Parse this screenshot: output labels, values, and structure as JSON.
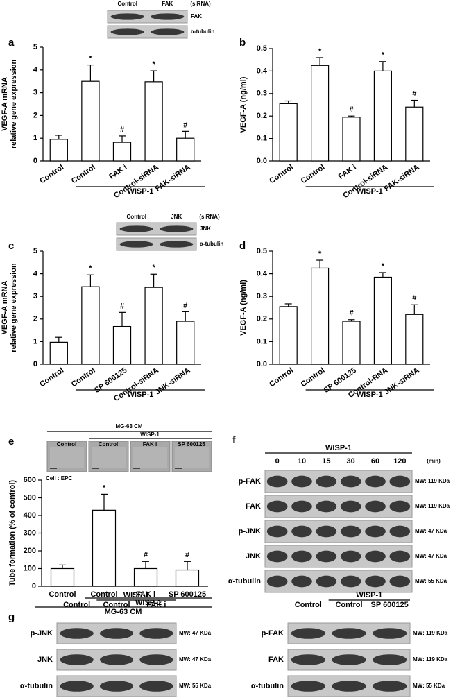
{
  "chart_data": [
    {
      "type": "bar",
      "panel": "a",
      "ylabel": [
        "VEGF-A mRNA",
        "relative gene expression"
      ],
      "categories": [
        "Control",
        "Control",
        "FAK i",
        "Control-siRNA",
        "FAK-siRNA"
      ],
      "values": [
        0.95,
        3.5,
        0.82,
        3.48,
        1.0
      ],
      "errors": [
        0.18,
        0.72,
        0.28,
        0.48,
        0.3
      ],
      "markers": [
        null,
        "*",
        "#",
        "*",
        "#"
      ],
      "groups": [
        "WISP-1"
      ],
      "ylim": [
        0,
        5
      ],
      "yticks": [
        0,
        1,
        2,
        3,
        4,
        5
      ],
      "color": "#ffffff"
    },
    {
      "type": "bar",
      "panel": "b",
      "ylabel": [
        "VEGF-A (ng/ml)"
      ],
      "categories": [
        "Control",
        "Control",
        "FAK i",
        "Control-siRNA",
        "FAK-siRNA"
      ],
      "values": [
        0.255,
        0.425,
        0.195,
        0.4,
        0.24
      ],
      "errors": [
        0.012,
        0.035,
        0.005,
        0.042,
        0.03
      ],
      "markers": [
        null,
        "*",
        "#",
        "*",
        "#"
      ],
      "groups": [
        "WISP-1"
      ],
      "ylim": [
        0,
        0.5
      ],
      "yticks": [
        {
          "value": 0,
          "label": "0.0"
        },
        0.1,
        0.2,
        0.3,
        0.4,
        0.5
      ],
      "color": "#ffffff"
    },
    {
      "type": "bar",
      "panel": "c",
      "ylabel": [
        "VEGF-A mRNA",
        "relative gene expression"
      ],
      "categories": [
        "Control",
        "Control",
        "SP 600125",
        "Control-siRNA",
        "JNK-siRNA"
      ],
      "values": [
        0.97,
        3.43,
        1.67,
        3.4,
        1.9
      ],
      "errors": [
        0.22,
        0.52,
        0.62,
        0.58,
        0.42
      ],
      "markers": [
        null,
        "*",
        "#",
        "*",
        "#"
      ],
      "groups": [
        "WISP-1"
      ],
      "ylim": [
        0,
        5
      ],
      "yticks": [
        0,
        1,
        2,
        3,
        4,
        5
      ],
      "color": "#ffffff"
    },
    {
      "type": "bar",
      "panel": "d",
      "ylabel": [
        "VEGF-A (ng/ml)"
      ],
      "categories": [
        "Control",
        "Control",
        "SP 600125",
        "Control-RNA",
        "JNK-siRNA"
      ],
      "values": [
        0.255,
        0.425,
        0.19,
        0.385,
        0.22
      ],
      "errors": [
        0.012,
        0.035,
        0.007,
        0.02,
        0.043
      ],
      "markers": [
        null,
        "*",
        "#",
        "*",
        "#"
      ],
      "groups": [
        "WISP-1"
      ],
      "ylim": [
        0,
        0.5
      ],
      "yticks": [
        {
          "value": 0,
          "label": "0.0"
        },
        0.1,
        0.2,
        0.3,
        0.4,
        0.5
      ],
      "color": "#ffffff"
    },
    {
      "type": "bar",
      "panel": "e",
      "ylabel": [
        "Tube formation (% of control)"
      ],
      "annotation": "Cell : EPC",
      "categories": [
        "Control",
        "Control",
        "FAK i",
        "SP 600125"
      ],
      "values": [
        100,
        430,
        100,
        92
      ],
      "errors": [
        20,
        90,
        40,
        48
      ],
      "markers": [
        null,
        "*",
        "#",
        "#"
      ],
      "groups": [
        "WISP-1",
        "MG-63 CM"
      ],
      "ylim": [
        0,
        600
      ],
      "yticks": [
        0,
        100,
        200,
        300,
        400,
        500,
        600
      ],
      "color": "#ffffff"
    }
  ],
  "micrographs": {
    "header": "MG-63 CM",
    "group": "WISP-1",
    "labels": [
      "Control",
      "Control",
      "FAK i",
      "SP 600125"
    ]
  },
  "blots": [
    {
      "lanes": [
        "Control",
        "FAK"
      ],
      "note": "(siRNA)",
      "rows": [
        {
          "name": "FAK"
        },
        {
          "name": "α-tubulin"
        }
      ]
    },
    {
      "lanes": [
        "Control",
        "JNK"
      ],
      "note": "(siRNA)",
      "rows": [
        {
          "name": "JNK"
        },
        {
          "name": "α-tubulin"
        }
      ]
    },
    {
      "panel": "f",
      "group": "WISP-1",
      "lanes": [
        "0",
        "10",
        "15",
        "30",
        "60",
        "120"
      ],
      "note": "(min)",
      "rows": [
        {
          "name": "p-FAK",
          "mw": "MW: 119 KDa"
        },
        {
          "name": "FAK",
          "mw": "MW: 119 KDa"
        },
        {
          "name": "p-JNK",
          "mw": "MW: 47 KDa"
        },
        {
          "name": "JNK",
          "mw": "MW: 47 KDa"
        },
        {
          "name": "α-tubulin",
          "mw": "MW: 55 KDa"
        }
      ]
    },
    {
      "panel": "g",
      "group": "WISP-1",
      "lanes": [
        "Control",
        "Control",
        "FAK i"
      ],
      "rows": [
        {
          "name": "p-JNK",
          "mw": "MW: 47 KDa"
        },
        {
          "name": "JNK",
          "mw": "MW: 47 KDa"
        },
        {
          "name": "α-tubulin",
          "mw": "MW: 55 KDa"
        }
      ]
    },
    {
      "group": "WISP-1",
      "lanes": [
        "Control",
        "Control",
        "SP 600125"
      ],
      "rows": [
        {
          "name": "p-FAK",
          "mw": "MW: 119 KDa"
        },
        {
          "name": "FAK",
          "mw": "MW: 119 KDa"
        },
        {
          "name": "α-tubulin",
          "mw": "MW: 55 KDa"
        }
      ]
    }
  ]
}
